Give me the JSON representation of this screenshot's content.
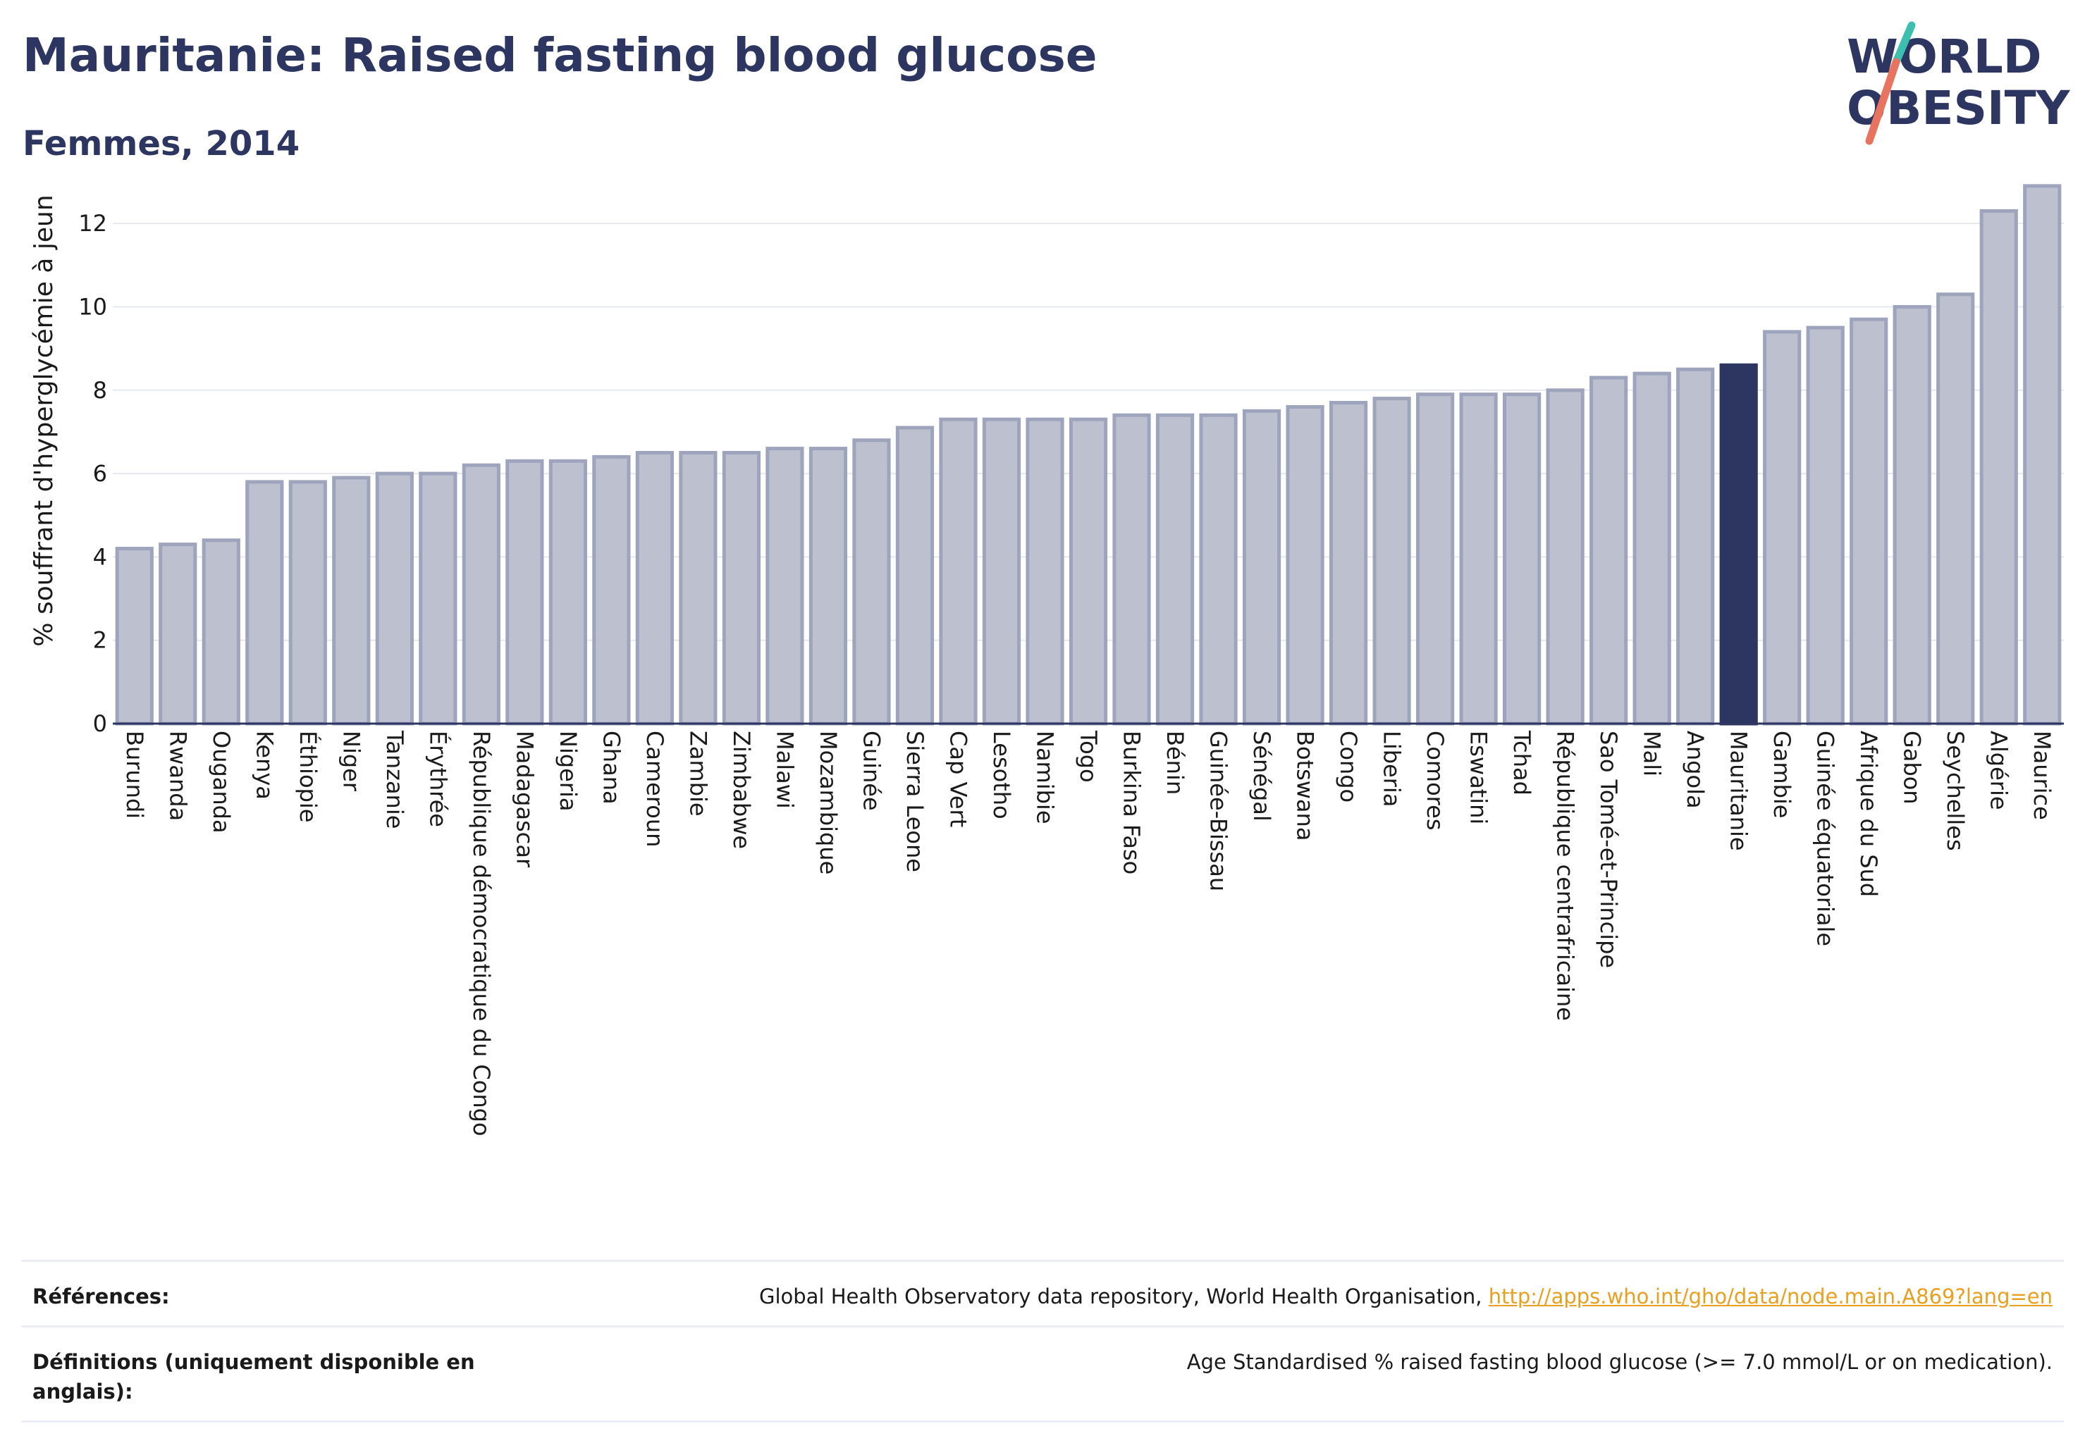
{
  "header": {
    "title": "Mauritanie: Raised fasting blood glucose",
    "subtitle": "Femmes, 2014"
  },
  "logo": {
    "line1": "WORLD",
    "line2": "OBESITY"
  },
  "footer": {
    "references_label": "Références:",
    "references_text": "Global Health Observatory data repository, World Health Organisation, ",
    "references_link": "http://apps.who.int/gho/data/node.main.A869?lang=en",
    "definitions_label": "Définitions (uniquement disponible en anglais):",
    "definitions_text": "Age Standardised % raised fasting blood glucose (>= 7.0 mmol/L or on medication)."
  },
  "colors": {
    "highlight": "#2d3561",
    "bar_fill": "#bcc0cf",
    "bar_stroke": "#9fa4bd",
    "logo_teal": "#3cbfae",
    "logo_coral": "#e8735f"
  },
  "chart_data": {
    "type": "bar",
    "ylabel": "% souffrant d'hyperglycémie à jeun",
    "xlabel": "",
    "ylim": [
      0,
      13
    ],
    "yticks": [
      0,
      2,
      4,
      6,
      8,
      10,
      12
    ],
    "grid": true,
    "highlight": "Mauritanie",
    "categories": [
      "Burundi",
      "Rwanda",
      "Ouganda",
      "Kenya",
      "Éthiopie",
      "Niger",
      "Tanzanie",
      "Érythrée",
      "République démocratique du Congo",
      "Madagascar",
      "Nigeria",
      "Ghana",
      "Cameroun",
      "Zambie",
      "Zimbabwe",
      "Malawi",
      "Mozambique",
      "Guinée",
      "Sierra Leone",
      "Cap Vert",
      "Lesotho",
      "Namibie",
      "Togo",
      "Burkina Faso",
      "Bénin",
      "Guinée-Bissau",
      "Sénégal",
      "Botswana",
      "Congo",
      "Liberia",
      "Comores",
      "Eswatini",
      "Tchad",
      "République centrafricaine",
      "Sao Tomé-et-Principe",
      "Mali",
      "Angola",
      "Mauritanie",
      "Gambie",
      "Guinée équatoriale",
      "Afrique du Sud",
      "Gabon",
      "Seychelles",
      "Algérie",
      "Maurice"
    ],
    "values": [
      4.2,
      4.3,
      4.4,
      5.8,
      5.8,
      5.9,
      6.0,
      6.0,
      6.2,
      6.3,
      6.3,
      6.4,
      6.5,
      6.5,
      6.5,
      6.6,
      6.6,
      6.8,
      7.1,
      7.3,
      7.3,
      7.3,
      7.3,
      7.4,
      7.4,
      7.4,
      7.5,
      7.6,
      7.7,
      7.8,
      7.9,
      7.9,
      7.9,
      8.0,
      8.3,
      8.4,
      8.5,
      8.6,
      9.4,
      9.5,
      9.7,
      10.0,
      10.3,
      12.3,
      12.9
    ]
  }
}
